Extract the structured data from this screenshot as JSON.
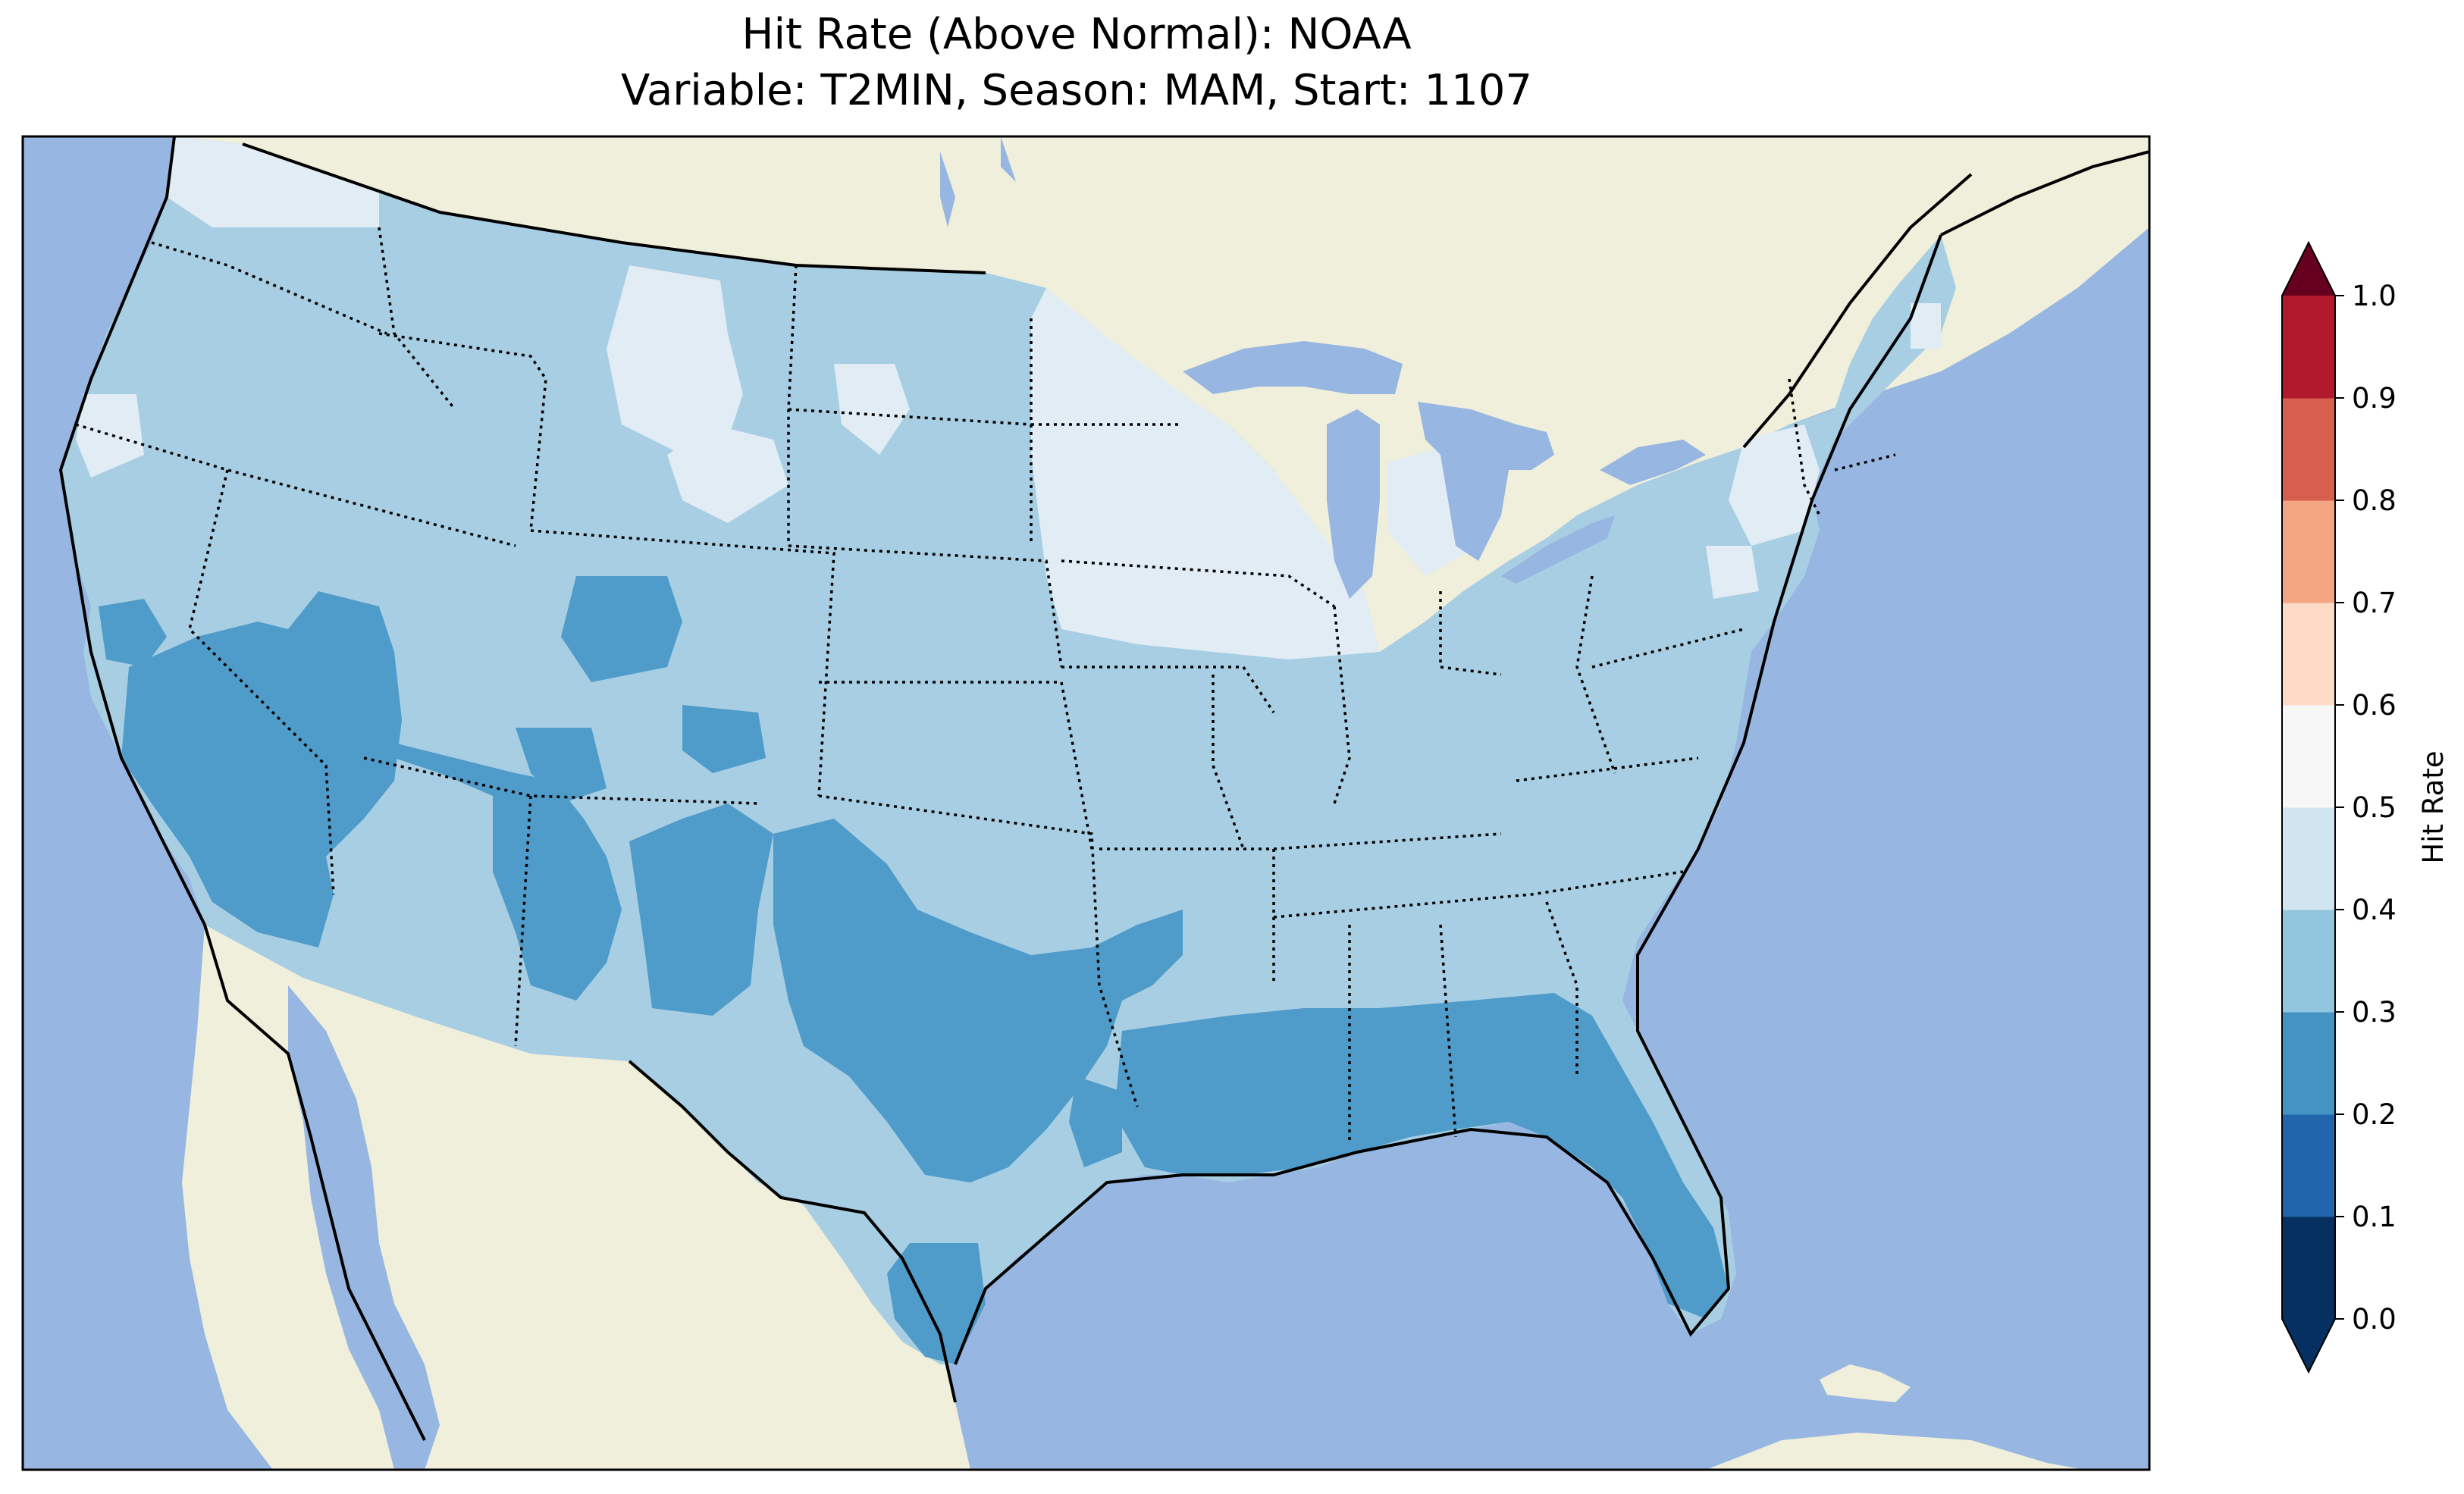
{
  "title_line1": "Hit Rate (Above Normal): NOAA",
  "title_line2": "Variable: T2MIN, Season: MAM, Start: 1107",
  "colorbar": {
    "label": "Hit Rate",
    "ticks": [
      "0.0",
      "0.1",
      "0.2",
      "0.3",
      "0.4",
      "0.5",
      "0.6",
      "0.7",
      "0.8",
      "0.9",
      "1.0"
    ],
    "colors": [
      "#053061",
      "#2166ac",
      "#4393c3",
      "#92c5de",
      "#d1e5f0",
      "#f7f7f7",
      "#fddbc7",
      "#f4a582",
      "#d6604d",
      "#b2182b",
      "#67001f"
    ],
    "extend": "both"
  },
  "map_colors": {
    "ocean": "#97b6e1",
    "land": "#efefdb",
    "bin_0_2_0_3": "#4f9bc9",
    "bin_0_3_0_4": "#a7cee3",
    "bin_0_4_0_5": "#e1ecf4"
  }
}
